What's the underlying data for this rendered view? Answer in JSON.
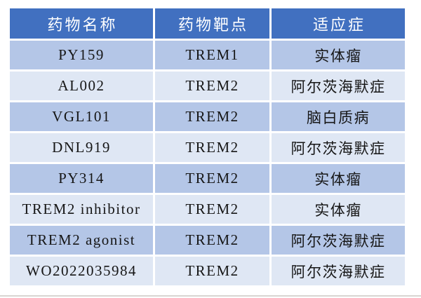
{
  "page": {
    "background": "#ffffff"
  },
  "table": {
    "columns": [
      {
        "label": "药物名称"
      },
      {
        "label": "药物靶点"
      },
      {
        "label": "适应症"
      }
    ],
    "rows": [
      {
        "cells": [
          "PY159",
          "TREM1",
          "实体瘤"
        ]
      },
      {
        "cells": [
          "AL002",
          "TREM2",
          "阿尔茨海默症"
        ]
      },
      {
        "cells": [
          "VGL101",
          "TREM2",
          "脑白质病"
        ]
      },
      {
        "cells": [
          "DNL919",
          "TREM2",
          "阿尔茨海默症"
        ]
      },
      {
        "cells": [
          "PY314",
          "TREM2",
          "实体瘤"
        ]
      },
      {
        "cells": [
          "TREM2 inhibitor",
          "TREM2",
          "实体瘤"
        ]
      },
      {
        "cells": [
          "TREM2 agonist",
          "TREM2",
          "阿尔茨海默症"
        ]
      },
      {
        "cells": [
          "WO2022035984",
          "TREM2",
          "阿尔茨海默症"
        ]
      }
    ],
    "colors": {
      "header_bg": "#4170c0",
      "header_text": "#ffffff",
      "row_odd_bg": "#b4c6e7",
      "row_even_bg": "#dfe7f4",
      "body_text": "#161616",
      "page_edge_line": "#d9d5d2"
    }
  }
}
